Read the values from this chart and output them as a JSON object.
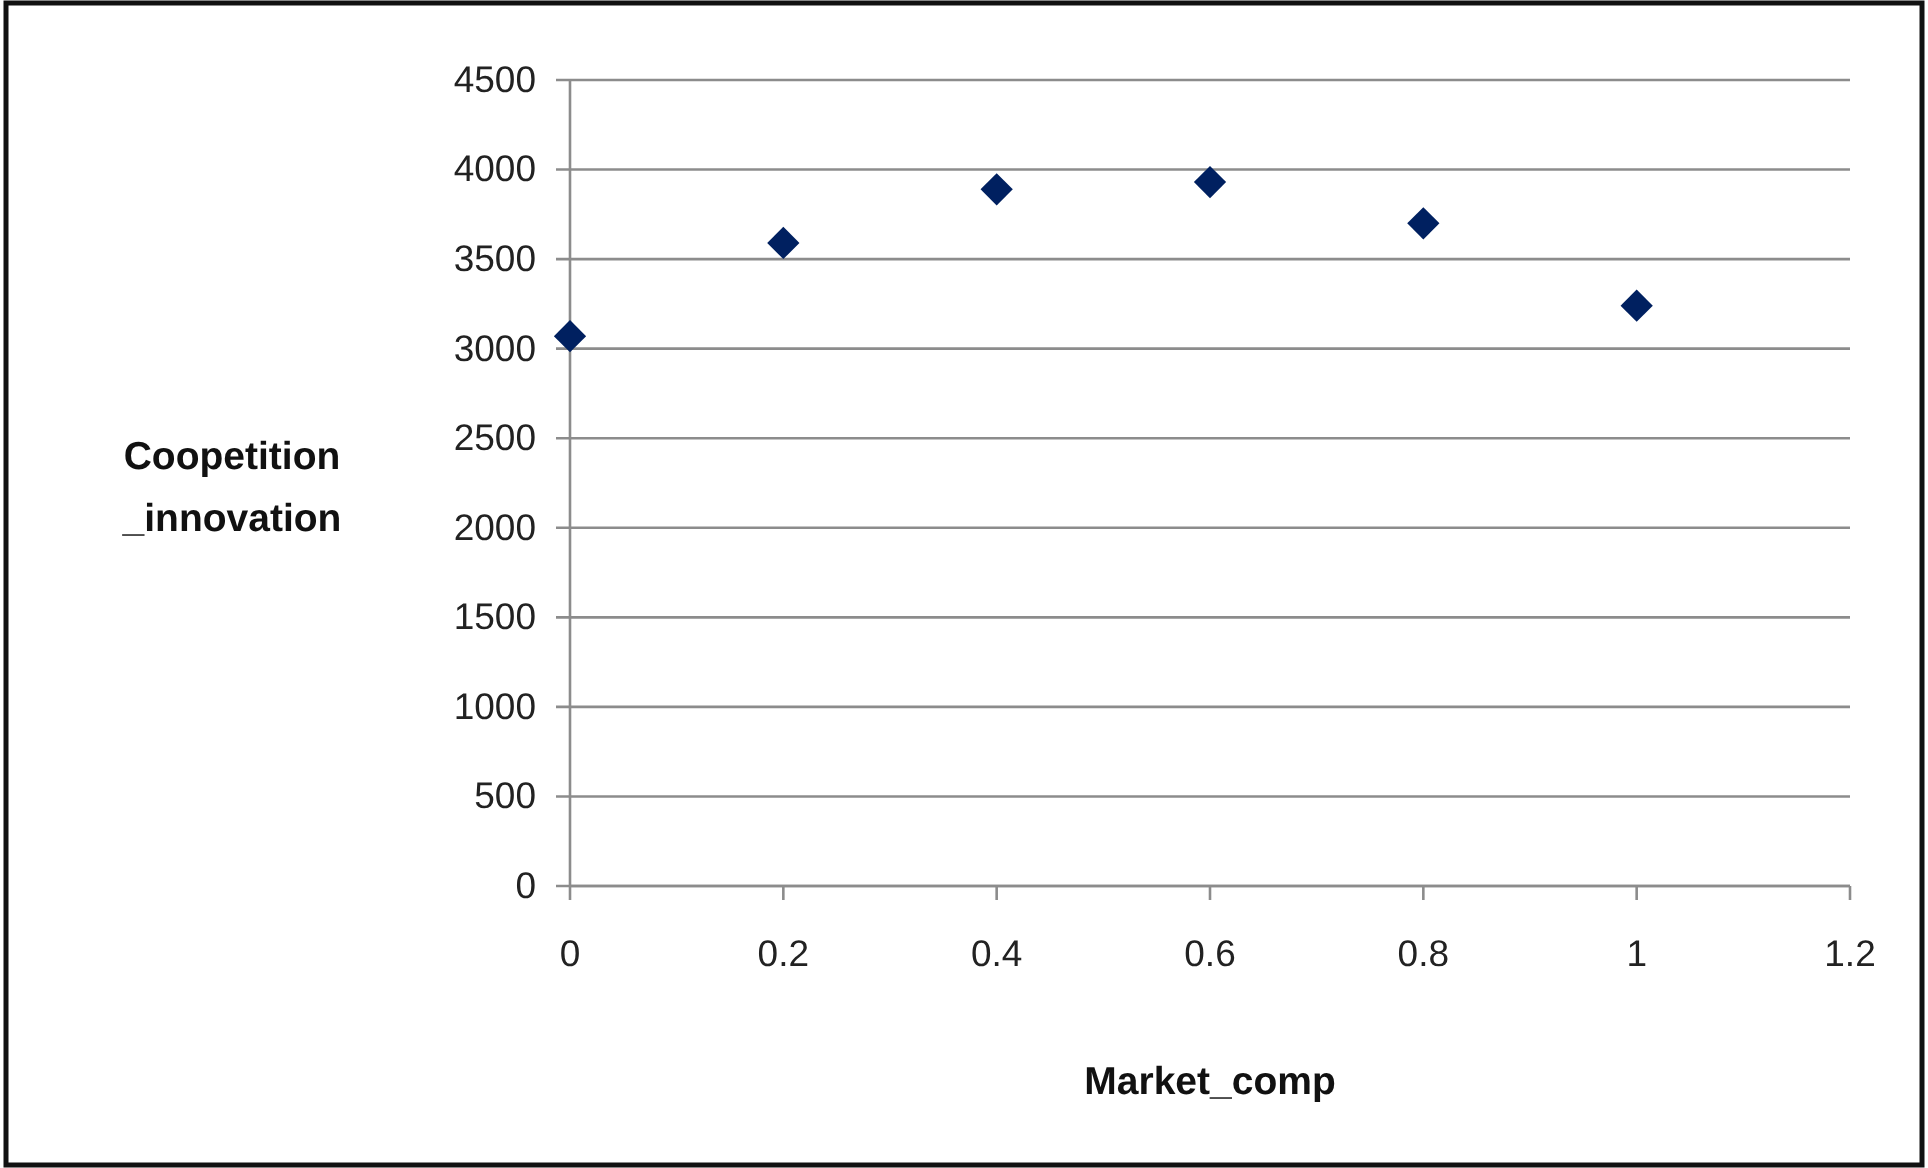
{
  "chart_data": {
    "type": "scatter",
    "xlabel": "Market_comp",
    "ylabel": "Coopetition_innovation",
    "x": [
      0,
      0.2,
      0.4,
      0.6,
      0.8,
      1
    ],
    "values": [
      3070,
      3590,
      3890,
      3930,
      3700,
      3240
    ],
    "color": "#002060",
    "marker": "diamond",
    "xlim": [
      0,
      1.2
    ],
    "xticks": [
      0,
      0.2,
      0.4,
      0.6,
      0.8,
      1,
      1.2
    ],
    "ylim": [
      0,
      4500
    ],
    "yticks": [
      0,
      500,
      1000,
      1500,
      2000,
      2500,
      3000,
      3500,
      4000,
      4500
    ],
    "grid": "y"
  }
}
